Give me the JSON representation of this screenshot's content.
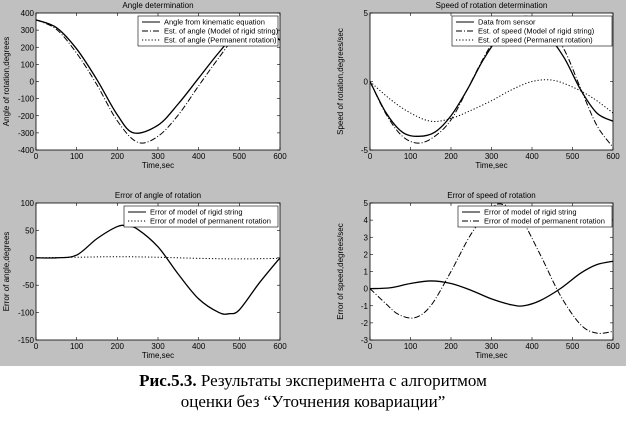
{
  "figure": {
    "background": "#c0c0c0",
    "caption": {
      "label": "Рис.5.3.",
      "line1": "Результаты эксперимента с алгоритмом",
      "line2": "оценки без “Уточнения ковариации”"
    }
  },
  "chart_data": [
    {
      "type": "line",
      "title": "Angle determination",
      "xlabel": "Time,sec",
      "ylabel": "Angle of rotation,degrees",
      "xlim": [
        0,
        600
      ],
      "ylim": [
        -400,
        400
      ],
      "xticks": [
        0,
        100,
        200,
        300,
        400,
        500,
        600
      ],
      "yticks": [
        -400,
        -300,
        -200,
        -100,
        0,
        100,
        200,
        300,
        400
      ],
      "grid": false,
      "legend": "top-right",
      "series": [
        {
          "name": "Angle from kinematic equation",
          "style": "solid",
          "color": "#000000",
          "x": [
            0,
            50,
            100,
            150,
            200,
            240,
            300,
            350,
            400,
            450,
            500,
            550,
            600
          ],
          "y": [
            360,
            315,
            190,
            10,
            -195,
            -300,
            -255,
            -130,
            20,
            170,
            300,
            340,
            240
          ]
        },
        {
          "name": "Est. of angle (Model of rigid string)",
          "style": "dashdot",
          "color": "#000000",
          "x": [
            0,
            50,
            100,
            150,
            200,
            250,
            300,
            350,
            400,
            450,
            500,
            550,
            600
          ],
          "y": [
            360,
            305,
            165,
            -20,
            -230,
            -355,
            -320,
            -195,
            -25,
            140,
            290,
            355,
            230
          ]
        },
        {
          "name": "Est. of angle (Permanent rotation)",
          "style": "dotted",
          "color": "#000000",
          "x": [
            0,
            50,
            100,
            150,
            200,
            240,
            300,
            350,
            400,
            450,
            500,
            550,
            600
          ],
          "y": [
            360,
            315,
            190,
            10,
            -195,
            -300,
            -255,
            -130,
            20,
            170,
            300,
            340,
            240
          ]
        }
      ]
    },
    {
      "type": "line",
      "title": "Speed of rotation determination",
      "xlabel": "Time,sec",
      "ylabel": "Speed of rotation,degrees/sec",
      "xlim": [
        0,
        600
      ],
      "ylim": [
        -5,
        5
      ],
      "xticks": [
        0,
        100,
        200,
        300,
        400,
        500,
        600
      ],
      "yticks": [
        -5,
        0,
        5
      ],
      "grid": false,
      "legend": "top-right",
      "series": [
        {
          "name": "Data from sensor",
          "style": "solid",
          "color": "#000000",
          "x": [
            0,
            40,
            80,
            120,
            160,
            200,
            240,
            280,
            320,
            360,
            400,
            440,
            480,
            520,
            560,
            600
          ],
          "y": [
            0,
            -2.3,
            -3.7,
            -4.0,
            -3.7,
            -2.5,
            -0.6,
            1.6,
            3.3,
            4.1,
            4.0,
            3.3,
            1.7,
            -0.6,
            -2.3,
            -2.9
          ]
        },
        {
          "name": "Est. of speed (Model of rigid string)",
          "style": "dashdot",
          "color": "#000000",
          "x": [
            0,
            40,
            80,
            120,
            160,
            200,
            240,
            280,
            320,
            360,
            400,
            440,
            480,
            520,
            560,
            600
          ],
          "y": [
            0,
            -2.4,
            -4.0,
            -4.5,
            -4.0,
            -2.8,
            -0.6,
            1.7,
            3.6,
            4.6,
            4.7,
            4.0,
            2.3,
            -0.5,
            -3.2,
            -4.8
          ]
        },
        {
          "name": "Est. of speed (Permanent rotation)",
          "style": "dotted",
          "color": "#000000",
          "x": [
            0,
            50,
            100,
            150,
            200,
            250,
            300,
            350,
            400,
            450,
            500,
            550,
            600
          ],
          "y": [
            0,
            -1.3,
            -2.3,
            -2.9,
            -2.7,
            -2.1,
            -1.4,
            -0.6,
            0.0,
            0.1,
            -0.4,
            -1.2,
            -2.3
          ]
        }
      ]
    },
    {
      "type": "line",
      "title": "Error of angle of rotation",
      "xlabel": "Time,sec",
      "ylabel": "Error of angle,degrees",
      "xlim": [
        0,
        600
      ],
      "ylim": [
        -150,
        100
      ],
      "xticks": [
        0,
        100,
        200,
        300,
        400,
        500,
        600
      ],
      "yticks": [
        -150,
        -100,
        -50,
        0,
        50,
        100
      ],
      "grid": false,
      "legend": "top-right",
      "series": [
        {
          "name": "Error of model of rigid string",
          "style": "solid",
          "color": "#000000",
          "x": [
            0,
            50,
            100,
            150,
            200,
            225,
            250,
            300,
            350,
            400,
            450,
            475,
            500,
            550,
            600
          ],
          "y": [
            0,
            0,
            5,
            35,
            57,
            58,
            52,
            20,
            -30,
            -75,
            -100,
            -102,
            -95,
            -45,
            0
          ]
        },
        {
          "name": "Error of model of permanent rotation",
          "style": "dotted",
          "color": "#000000",
          "x": [
            0,
            100,
            200,
            300,
            400,
            500,
            600
          ],
          "y": [
            0,
            1,
            2,
            1,
            -1,
            -2,
            -1
          ]
        }
      ]
    },
    {
      "type": "line",
      "title": "Error of speed of rotation",
      "xlabel": "Time,sec",
      "ylabel": "Error of speed,degrees/sec",
      "xlim": [
        0,
        600
      ],
      "ylim": [
        -3,
        5
      ],
      "xticks": [
        0,
        100,
        200,
        300,
        400,
        500,
        600
      ],
      "yticks": [
        -3,
        -2,
        -1,
        0,
        1,
        2,
        3,
        4,
        5
      ],
      "grid": false,
      "legend": "top-right",
      "series": [
        {
          "name": "Error of model of rigid string",
          "style": "solid",
          "color": "#000000",
          "x": [
            0,
            50,
            100,
            150,
            200,
            250,
            300,
            350,
            380,
            420,
            470,
            520,
            560,
            600
          ],
          "y": [
            0,
            0.05,
            0.3,
            0.45,
            0.3,
            -0.1,
            -0.6,
            -0.95,
            -1.0,
            -0.7,
            0.0,
            0.9,
            1.4,
            1.6
          ]
        },
        {
          "name": "Error of model of permanent rotation",
          "style": "dashdot",
          "color": "#000000",
          "x": [
            0,
            40,
            70,
            110,
            150,
            200,
            250,
            300,
            330,
            370,
            420,
            470,
            520,
            560,
            600
          ],
          "y": [
            0,
            -0.9,
            -1.5,
            -1.7,
            -1.0,
            1.0,
            3.2,
            4.7,
            4.9,
            4.2,
            2.0,
            -0.4,
            -2.1,
            -2.6,
            -2.5
          ]
        }
      ]
    }
  ]
}
